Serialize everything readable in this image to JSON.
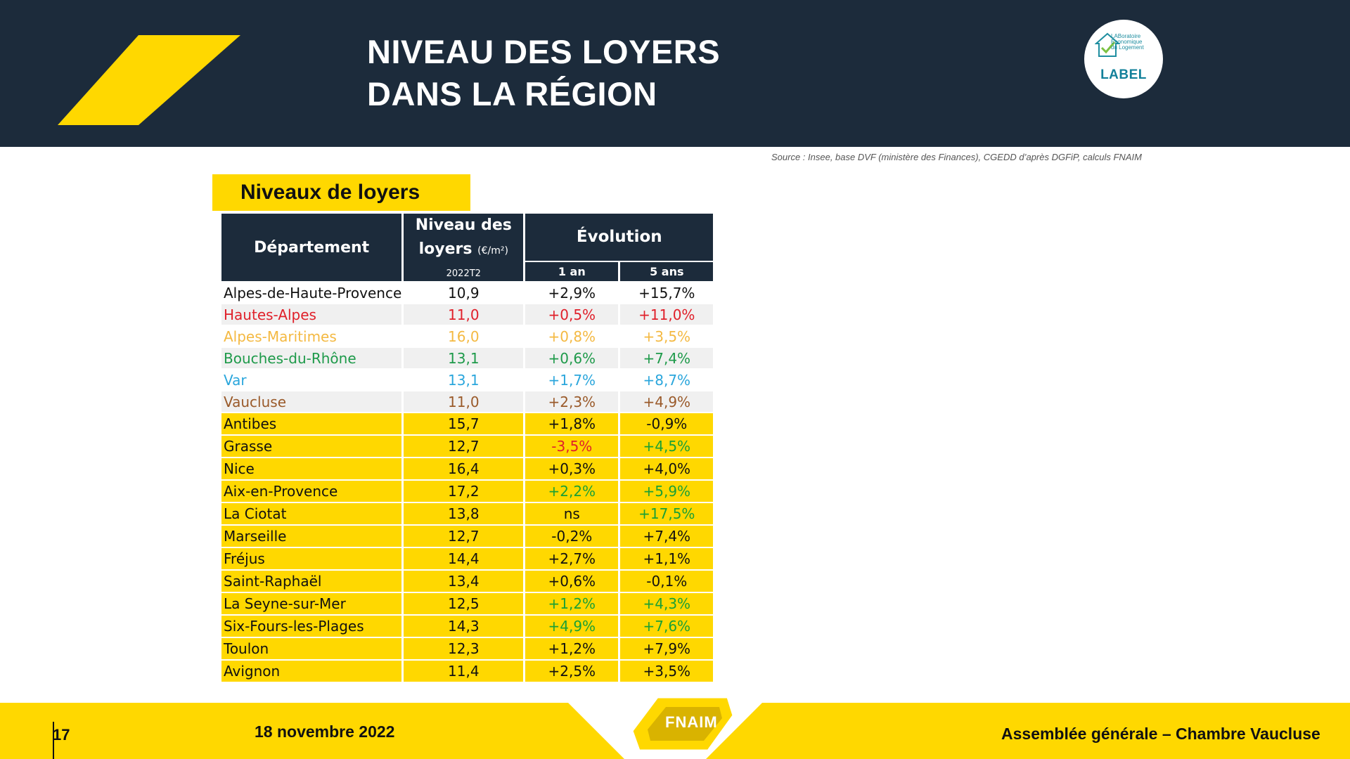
{
  "header": {
    "title_line1": "NIVEAU DES LOYERS",
    "title_line2": "DANS LA RÉGION",
    "logo_line1": "LABoratoire",
    "logo_line2": "Économique",
    "logo_line3": "du Logement",
    "logo_label": "LABEL"
  },
  "source_note": "Source : Insee, base DVF (ministère des Finances), CGEDD d’après DGFiP, calculs FNAIM",
  "badge": "Niveaux de loyers",
  "table": {
    "col_departement": "Département",
    "col_niveau_line1": "Niveau des",
    "col_niveau_line2": "loyers",
    "col_niveau_unit": "(€/m²)",
    "col_niveau_period": "2022T2",
    "col_evolution": "Évolution",
    "col_1an": "1 an",
    "col_5ans": "5 ans",
    "departements": [
      {
        "name": "Alpes-de-Haute-Provence",
        "niveau": "10,9",
        "an1": "+2,9%",
        "ans5": "+15,7%",
        "color": "#111111"
      },
      {
        "name": "Hautes-Alpes",
        "niveau": "11,0",
        "an1": "+0,5%",
        "ans5": "+11,0%",
        "color": "#e0202a"
      },
      {
        "name": "Alpes-Maritimes",
        "niveau": "16,0",
        "an1": "+0,8%",
        "ans5": "+3,5%",
        "color": "#f4b942"
      },
      {
        "name": "Bouches-du-Rhône",
        "niveau": "13,1",
        "an1": "+0,6%",
        "ans5": "+7,4%",
        "color": "#1e9a4a"
      },
      {
        "name": "Var",
        "niveau": "13,1",
        "an1": "+1,7%",
        "ans5": "+8,7%",
        "color": "#2aa6dc"
      },
      {
        "name": "Vaucluse",
        "niveau": "11,0",
        "an1": "+2,3%",
        "ans5": "+4,9%",
        "color": "#9a5a2a"
      }
    ],
    "villes": [
      {
        "name": "Antibes",
        "niveau": "15,7",
        "an1": "+1,8%",
        "ans5": "-0,9%",
        "c1": "#111111",
        "c5": "#111111"
      },
      {
        "name": "Grasse",
        "niveau": "12,7",
        "an1": "-3,5%",
        "ans5": "+4,5%",
        "c1": "#e0202a",
        "c5": "#1aa035"
      },
      {
        "name": "Nice",
        "niveau": "16,4",
        "an1": "+0,3%",
        "ans5": "+4,0%",
        "c1": "#111111",
        "c5": "#111111"
      },
      {
        "name": "Aix-en-Provence",
        "niveau": "17,2",
        "an1": "+2,2%",
        "ans5": "+5,9%",
        "c1": "#1aa035",
        "c5": "#1aa035"
      },
      {
        "name": "La Ciotat",
        "niveau": "13,8",
        "an1": "ns",
        "ans5": "+17,5%",
        "c1": "#111111",
        "c5": "#1aa035"
      },
      {
        "name": "Marseille",
        "niveau": "12,7",
        "an1": "-0,2%",
        "ans5": "+7,4%",
        "c1": "#111111",
        "c5": "#111111"
      },
      {
        "name": "Fréjus",
        "niveau": "14,4",
        "an1": "+2,7%",
        "ans5": "+1,1%",
        "c1": "#111111",
        "c5": "#111111"
      },
      {
        "name": "Saint-Raphaël",
        "niveau": "13,4",
        "an1": "+0,6%",
        "ans5": "-0,1%",
        "c1": "#111111",
        "c5": "#111111"
      },
      {
        "name": "La Seyne-sur-Mer",
        "niveau": "12,5",
        "an1": "+1,2%",
        "ans5": "+4,3%",
        "c1": "#1aa035",
        "c5": "#1aa035"
      },
      {
        "name": "Six-Fours-les-Plages",
        "niveau": "14,3",
        "an1": "+4,9%",
        "ans5": "+7,6%",
        "c1": "#1aa035",
        "c5": "#1aa035"
      },
      {
        "name": "Toulon",
        "niveau": "12,3",
        "an1": "+1,2%",
        "ans5": "+7,9%",
        "c1": "#111111",
        "c5": "#111111"
      },
      {
        "name": "Avignon",
        "niveau": "11,4",
        "an1": "+2,5%",
        "ans5": "+3,5%",
        "c1": "#111111",
        "c5": "#111111"
      }
    ]
  },
  "footer": {
    "page_number": "17",
    "date": "18 novembre 2022",
    "event": "Assemblée générale – Chambre Vaucluse",
    "brand": "FNAIM"
  },
  "colors": {
    "navy": "#1c2b3b",
    "yellow": "#ffd800"
  }
}
